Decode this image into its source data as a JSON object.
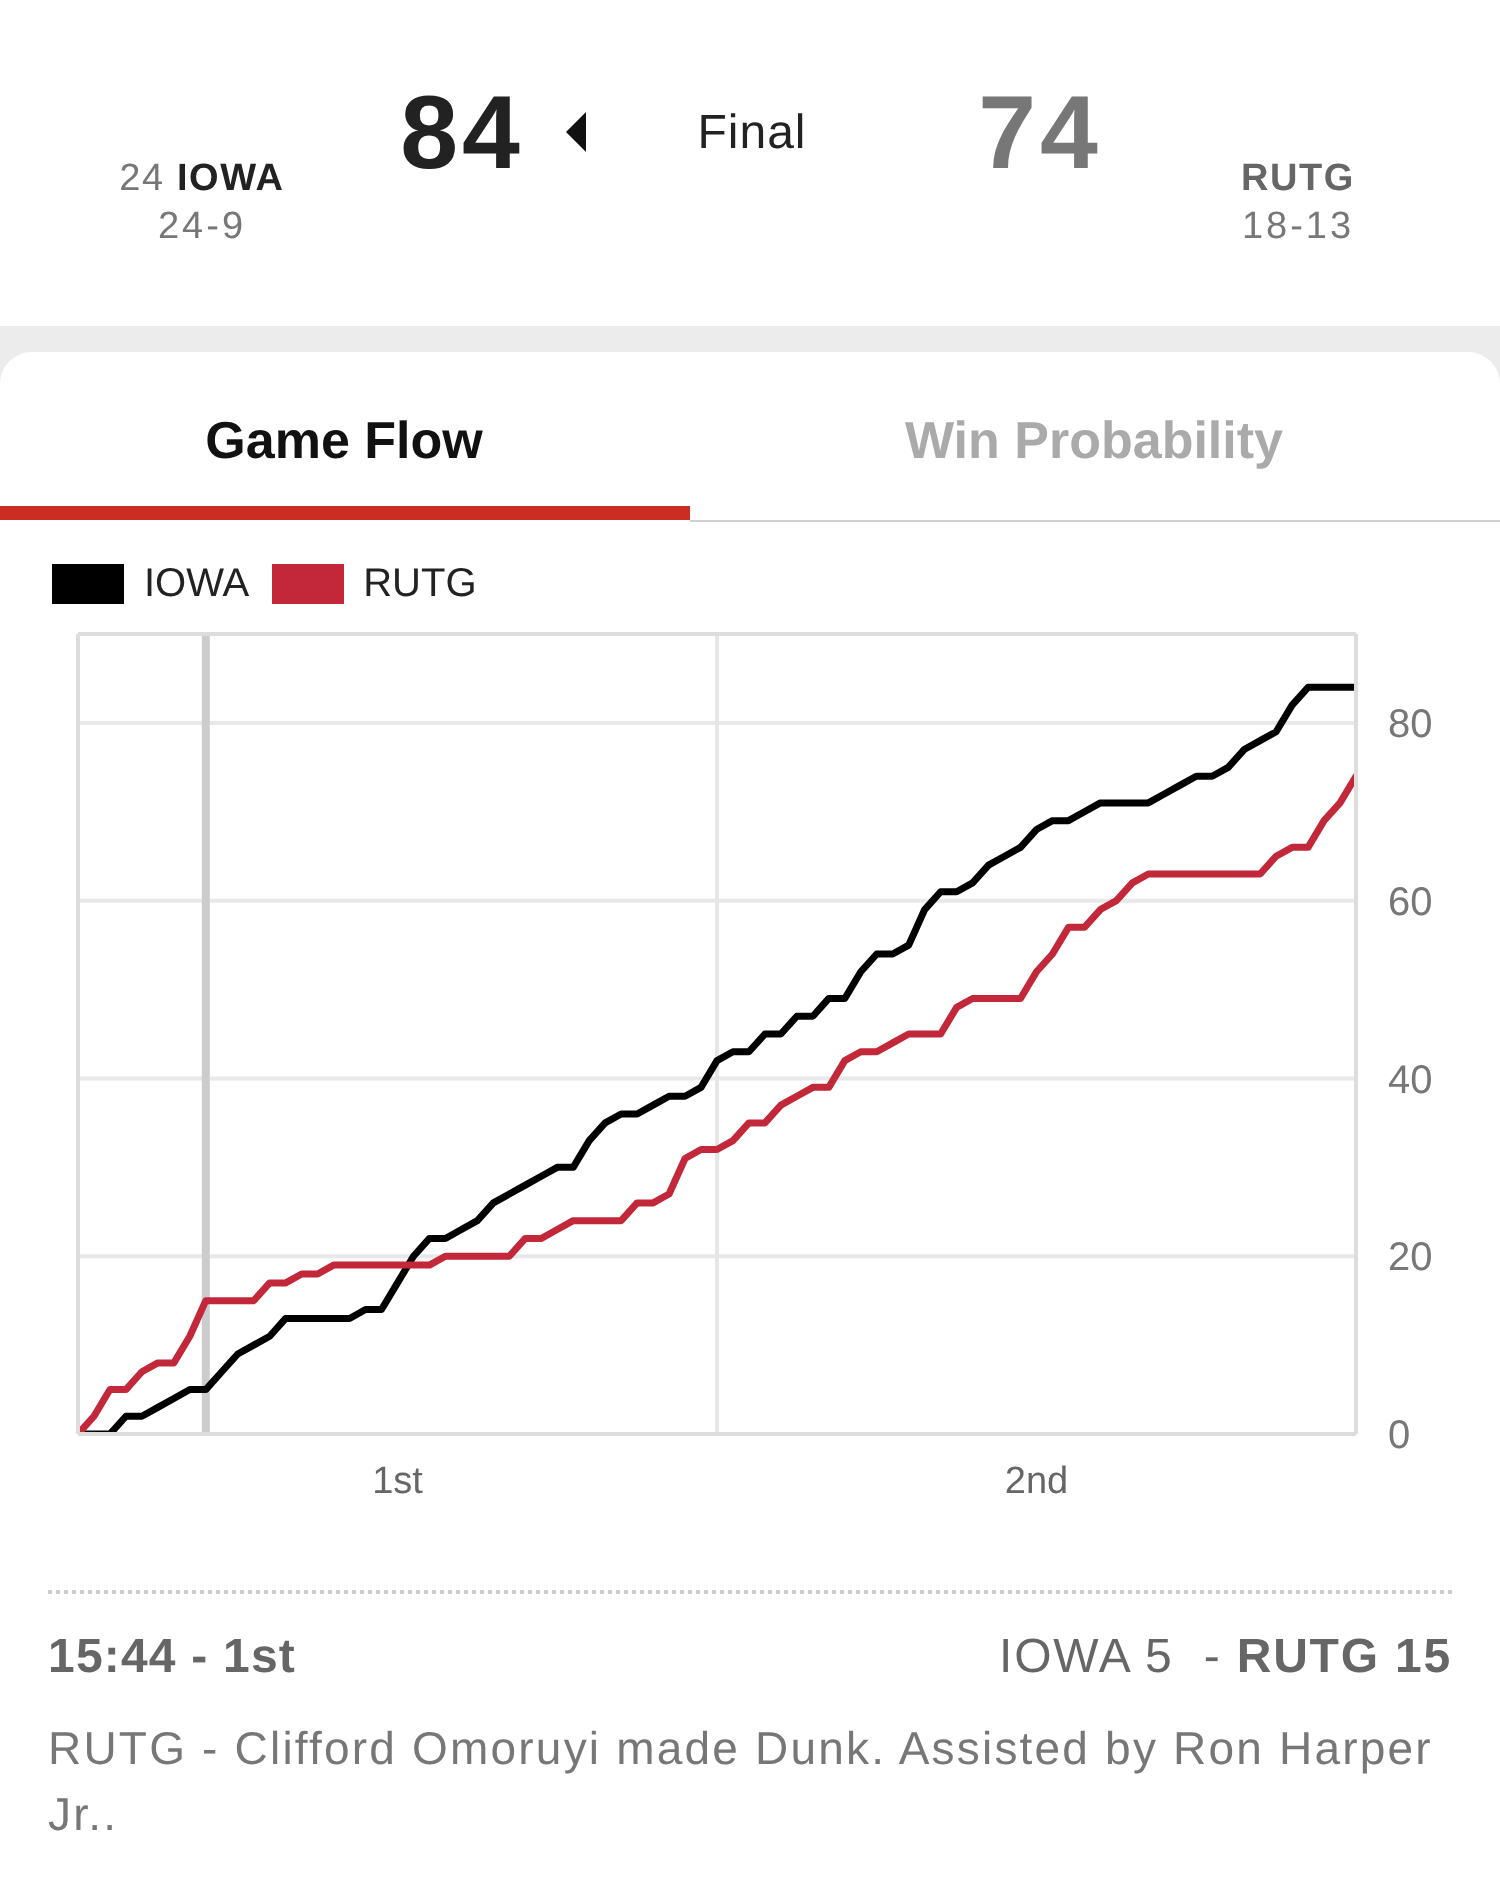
{
  "chart_data": {
    "type": "line",
    "title": "Game Flow",
    "annotations": [
      "84",
      "Final",
      "74",
      "24",
      "IOWA",
      "24-9",
      "RUTG",
      "18-13",
      "Win Probability",
      "15:44 - 1st",
      "IOWA 5",
      "-",
      "RUTG 15",
      "RUTG - Clifford Omoruyi made Dunk. Assisted by Ron Harper Jr.."
    ],
    "categories": [
      null,
      null,
      null,
      null,
      null,
      null,
      null,
      null,
      null,
      null,
      null,
      null,
      null,
      null,
      null,
      null,
      null,
      null,
      null,
      null,
      "1st",
      null,
      null,
      null,
      null,
      null,
      null,
      null,
      null,
      null,
      null,
      null,
      null,
      null,
      null,
      null,
      null,
      null,
      null,
      null,
      null,
      null,
      null,
      null,
      null,
      null,
      null,
      null,
      null,
      null,
      null,
      null,
      null,
      null,
      null,
      null,
      null,
      null,
      null,
      null,
      "2nd",
      null,
      null,
      null,
      null,
      null,
      null,
      null,
      null,
      null,
      null,
      null,
      null,
      null,
      null,
      null,
      null,
      null,
      null,
      null,
      null
    ],
    "ylim": [
      0,
      90
    ],
    "yticks": [
      0,
      20,
      40,
      60,
      80
    ],
    "grid": "y",
    "legend": "top left",
    "marker": "none",
    "series": [
      {
        "name": "IOWA",
        "color": "#000000",
        "values": [
          0,
          0,
          0,
          2,
          2,
          3,
          4,
          5,
          5,
          7,
          9,
          10,
          11,
          13,
          13,
          13,
          13,
          13,
          14,
          14,
          17,
          20,
          22,
          22,
          23,
          24,
          26,
          27,
          28,
          29,
          30,
          30,
          33,
          35,
          36,
          36,
          37,
          38,
          38,
          39,
          42,
          43,
          43,
          45,
          45,
          47,
          47,
          49,
          49,
          52,
          54,
          54,
          55,
          59,
          61,
          61,
          62,
          64,
          65,
          66,
          68,
          69,
          69,
          70,
          71,
          71,
          71,
          71,
          72,
          73,
          74,
          74,
          75,
          77,
          78,
          79,
          82,
          84,
          84,
          84,
          84
        ]
      },
      {
        "name": "RUTG",
        "color": "#c2283a",
        "values": [
          0,
          2,
          5,
          5,
          7,
          8,
          8,
          11,
          15,
          15,
          15,
          15,
          17,
          17,
          18,
          18,
          19,
          19,
          19,
          19,
          19,
          19,
          19,
          20,
          20,
          20,
          20,
          20,
          22,
          22,
          23,
          24,
          24,
          24,
          24,
          26,
          26,
          27,
          31,
          32,
          32,
          33,
          35,
          35,
          37,
          38,
          39,
          39,
          42,
          43,
          43,
          44,
          45,
          45,
          45,
          48,
          49,
          49,
          49,
          49,
          52,
          54,
          57,
          57,
          59,
          60,
          62,
          63,
          63,
          63,
          63,
          63,
          63,
          63,
          63,
          65,
          66,
          66,
          69,
          71,
          74
        ]
      }
    ]
  }
}
